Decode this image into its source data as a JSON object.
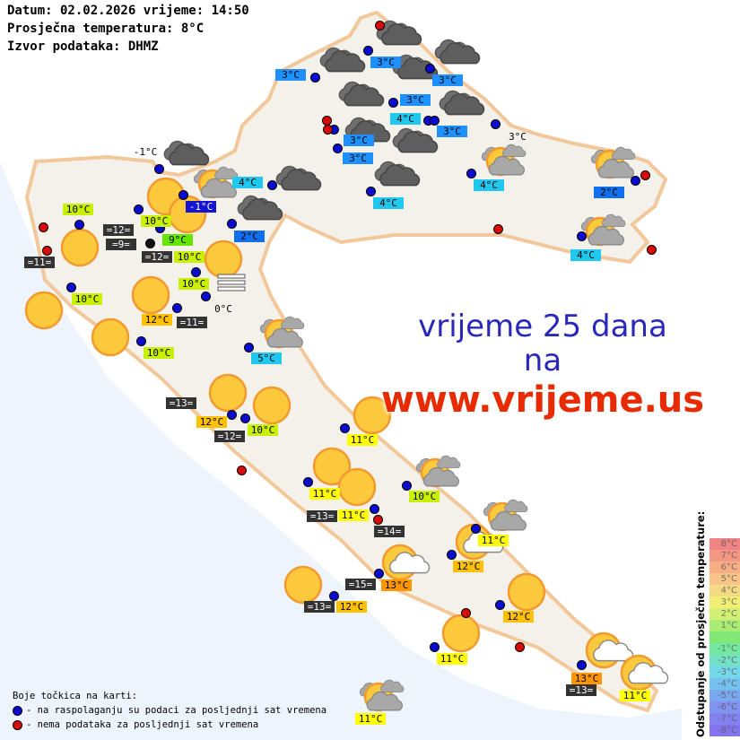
{
  "header": {
    "line1": "Datum: 02.02.2026 vrijeme: 14:50",
    "line2": "Prosječna temperatura: 8°C",
    "line3": "Izvor podataka: DHMZ"
  },
  "promo": {
    "line1": "vrijeme 25 dana",
    "line2": "na",
    "line3": "www.vrijeme.us"
  },
  "colors": {
    "dot_available": "#0a0ad0",
    "dot_missing": "#d80a0a",
    "land": "#f3f1ea",
    "sea": "#eef4fb",
    "border": "#f2c79a"
  },
  "badges": [
    {
      "text": "3°C",
      "bg": "#1e90ff"
    },
    {
      "text": "3°C",
      "bg": "#1e90ff"
    },
    {
      "text": "3°C",
      "bg": "#1e90ff"
    },
    {
      "text": "3°C",
      "bg": "#1e90ff"
    },
    {
      "text": "4°C",
      "bg": "#20c8f0"
    },
    {
      "text": "3°C",
      "bg": "#1e90ff"
    },
    {
      "text": "3°C",
      "bg": "#1e90ff"
    },
    {
      "text": "3°C",
      "bg": "#1e90ff"
    },
    {
      "text": "4°C",
      "bg": "#20c8f0"
    },
    {
      "text": "4°C",
      "bg": "#20c8f0"
    },
    {
      "text": "3°C",
      "bg": ""
    },
    {
      "text": "2°C",
      "bg": "#1070f0"
    },
    {
      "text": "4°C",
      "bg": "#20c8f0"
    },
    {
      "text": "4°C",
      "bg": "#20c8f0"
    },
    {
      "text": "-1°C",
      "bg": "#1414d2"
    },
    {
      "text": "2°C",
      "bg": "#1070f0"
    },
    {
      "text": "-1°C",
      "bg": ""
    },
    {
      "text": "10°C",
      "bg": "#c8f000"
    },
    {
      "text": "10°C",
      "bg": "#c8f000"
    },
    {
      "text": "9°C",
      "bg": "#64e600"
    },
    {
      "text": "10°C",
      "bg": "#c8f000"
    },
    {
      "text": "=12=",
      "bg": "#333333"
    },
    {
      "text": "=9=",
      "bg": "#333333"
    },
    {
      "text": "=12=",
      "bg": "#333333"
    },
    {
      "text": "=11=",
      "bg": "#333333"
    },
    {
      "text": "10°C",
      "bg": "#c8f000"
    },
    {
      "text": "10°C",
      "bg": "#c8f000"
    },
    {
      "text": "0°C",
      "bg": ""
    },
    {
      "text": "12°C",
      "bg": "#ffc000"
    },
    {
      "text": "=11=",
      "bg": "#333333"
    },
    {
      "text": "10°C",
      "bg": "#c8f000"
    },
    {
      "text": "5°C",
      "bg": "#20c8f0"
    },
    {
      "text": "=13=",
      "bg": "#333333"
    },
    {
      "text": "12°C",
      "bg": "#ffc000"
    },
    {
      "text": "=12=",
      "bg": "#333333"
    },
    {
      "text": "10°C",
      "bg": "#c8f000"
    },
    {
      "text": "11°C",
      "bg": "#ffff00"
    },
    {
      "text": "11°C",
      "bg": "#ffff00"
    },
    {
      "text": "10°C",
      "bg": "#c8f000"
    },
    {
      "text": "=13=",
      "bg": "#333333"
    },
    {
      "text": "11°C",
      "bg": "#ffff00"
    },
    {
      "text": "=14=",
      "bg": "#333333"
    },
    {
      "text": "11°C",
      "bg": "#ffff00"
    },
    {
      "text": "12°C",
      "bg": "#ffc000"
    },
    {
      "text": "=15=",
      "bg": "#333333"
    },
    {
      "text": "13°C",
      "bg": "#ff9600"
    },
    {
      "text": "=13=",
      "bg": "#333333"
    },
    {
      "text": "12°C",
      "bg": "#ffc000"
    },
    {
      "text": "12°C",
      "bg": "#ffc000"
    },
    {
      "text": "11°C",
      "bg": "#ffff00"
    },
    {
      "text": "13°C",
      "bg": "#ff9600"
    },
    {
      "text": "=13=",
      "bg": "#333333"
    },
    {
      "text": "11°C",
      "bg": "#ffff00"
    },
    {
      "text": "11°C",
      "bg": "#ffff00"
    }
  ],
  "dots": [
    "available",
    "available",
    "available",
    "available",
    "available",
    "available",
    "available",
    "available",
    "available",
    "available",
    "available",
    "available",
    "available",
    "available",
    "available",
    "available",
    "available",
    "available",
    "available",
    "available",
    "available",
    "available",
    "available",
    "available",
    "available",
    "available",
    "available",
    "available",
    "available",
    "available",
    "available",
    "available",
    "available",
    "available",
    "available",
    "available",
    "available",
    "available",
    "available",
    "missing",
    "missing",
    "missing",
    "missing",
    "missing",
    "missing",
    "missing",
    "missing",
    "missing",
    "missing",
    "missing",
    "missing"
  ],
  "icons": [
    "sun",
    "sun",
    "sun",
    "sun",
    "sun",
    "sun",
    "sun",
    "sun",
    "sun",
    "sun",
    "sun",
    "sun",
    "sun",
    "sun",
    "sun",
    "sun-white-cloud",
    "sun-white-cloud",
    "sun-white-cloud",
    "sun-white-cloud",
    "partly-cloudy",
    "partly-cloudy",
    "partly-cloudy",
    "partly-cloudy",
    "partly-cloudy",
    "partly-cloudy",
    "partly-cloudy",
    "partly-cloudy",
    "overcast",
    "overcast",
    "overcast",
    "overcast",
    "overcast",
    "overcast",
    "overcast",
    "overcast",
    "overcast",
    "overcast",
    "overcast",
    "overcast",
    "fog"
  ],
  "legend": {
    "title": "Boje točkica na karti:",
    "available": "- na raspolaganju su podaci za posljednji sat vremena",
    "missing": "- nema podataka za posljednji sat vremena"
  },
  "scale": {
    "title": "Odstupanje od prosječne temperature:",
    "steps": [
      {
        "label": "8°C",
        "color": "#f08484"
      },
      {
        "label": "7°C",
        "color": "#f49884"
      },
      {
        "label": "6°C",
        "color": "#f8ae84"
      },
      {
        "label": "5°C",
        "color": "#f8c488"
      },
      {
        "label": "4°C",
        "color": "#f4da84"
      },
      {
        "label": "3°C",
        "color": "#f0ee74"
      },
      {
        "label": "2°C",
        "color": "#d2f074"
      },
      {
        "label": "1°C",
        "color": "#a8ec74"
      },
      {
        "label": "",
        "color": "#80e874"
      },
      {
        "label": "-1°C",
        "color": "#74e8a0"
      },
      {
        "label": "-2°C",
        "color": "#74e2c8"
      },
      {
        "label": "-3°C",
        "color": "#74d8ea"
      },
      {
        "label": "-4°C",
        "color": "#74c2f0"
      },
      {
        "label": "-5°C",
        "color": "#7aa8f0"
      },
      {
        "label": "-6°C",
        "color": "#8292f0"
      },
      {
        "label": "-7°C",
        "color": "#8282f0"
      },
      {
        "label": "-8°C",
        "color": "#8474f0"
      }
    ]
  }
}
